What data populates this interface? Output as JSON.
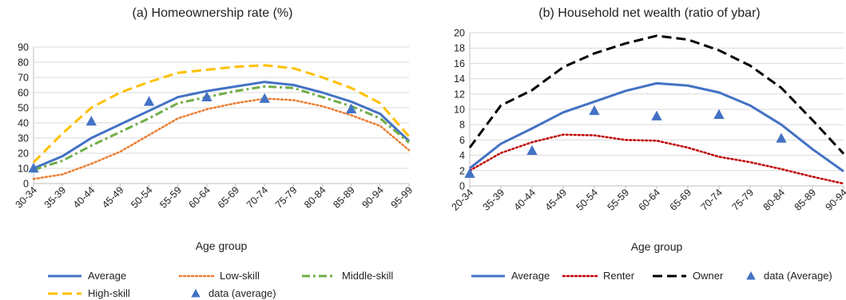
{
  "chart_data": [
    {
      "type": "line",
      "title": "(a) Homeownership rate (%)",
      "xlabel": "Age group",
      "ylabel": "",
      "ylim": [
        0,
        90
      ],
      "yticks": [
        "0",
        "10",
        "20",
        "30",
        "40",
        "50",
        "60",
        "70",
        "80",
        "90"
      ],
      "categories": [
        "30-34",
        "35-39",
        "40-44",
        "45-49",
        "50-54",
        "55-59",
        "60-64",
        "65-69",
        "70-74",
        "75-79",
        "80-84",
        "85-89",
        "90-94",
        "95-99"
      ],
      "grid": "horizontal",
      "legend_placement": "bottom",
      "series": [
        {
          "name": "Average",
          "color": "#4472c4",
          "style": "solid",
          "values": [
            10,
            18,
            30,
            39,
            48,
            57,
            61,
            64,
            67,
            65,
            60,
            54,
            46,
            28
          ]
        },
        {
          "name": "Low-skill",
          "color": "#ed7d31",
          "style": "dotted",
          "values": [
            3,
            6,
            13,
            21,
            32,
            43,
            49,
            53,
            56,
            55,
            51,
            45,
            38,
            22
          ]
        },
        {
          "name": "Middle-skill",
          "color": "#70ad47",
          "style": "dashdot",
          "values": [
            9,
            15,
            25,
            34,
            43,
            53,
            57,
            61,
            64,
            63,
            57,
            51,
            43,
            27
          ]
        },
        {
          "name": "High-skill",
          "color": "#ffc000",
          "style": "dashed",
          "values": [
            14,
            33,
            50,
            60,
            67,
            73,
            75,
            77,
            78,
            76,
            70,
            63,
            53,
            31
          ]
        },
        {
          "name": "data (average)",
          "color": "#4472c4",
          "style": "markers",
          "points": [
            {
              "category": "30-34",
              "value": 10
            },
            {
              "category": "40-44",
              "value": 41
            },
            {
              "category": "50-54",
              "value": 54
            },
            {
              "category": "60-64",
              "value": 57
            },
            {
              "category": "70-74",
              "value": 56
            },
            {
              "category": "85-89",
              "value": 49
            }
          ]
        }
      ],
      "legend_items": [
        {
          "label": "Average",
          "series": 0
        },
        {
          "label": "Low-skill",
          "series": 1
        },
        {
          "label": "Middle-skill",
          "series": 2
        },
        {
          "label": "High-skill",
          "series": 3
        },
        {
          "label": "data (average)",
          "series": 4
        }
      ]
    },
    {
      "type": "line",
      "title": "(b) Household net wealth (ratio of ybar)",
      "xlabel": "Age group",
      "ylabel": "",
      "ylim": [
        0,
        20
      ],
      "yticks": [
        "0",
        "2",
        "4",
        "6",
        "8",
        "10",
        "12",
        "14",
        "16",
        "18",
        "20"
      ],
      "categories": [
        "20-34",
        "35-39",
        "40-44",
        "45-49",
        "50-54",
        "55-59",
        "60-64",
        "65-69",
        "70-74",
        "75-79",
        "80-84",
        "85-89",
        "90-94"
      ],
      "grid": "horizontal",
      "legend_placement": "bottom",
      "series": [
        {
          "name": "Average",
          "color": "#4472c4",
          "style": "solid",
          "values": [
            2.3,
            5.5,
            7.5,
            9.6,
            11.0,
            12.4,
            13.4,
            13.1,
            12.2,
            10.5,
            8.0,
            4.8,
            1.9
          ]
        },
        {
          "name": "Renter",
          "color": "#c00000",
          "style": "dotted",
          "values": [
            2.0,
            4.3,
            5.7,
            6.7,
            6.6,
            6.0,
            5.9,
            5.0,
            3.8,
            3.1,
            2.2,
            1.2,
            0.3
          ]
        },
        {
          "name": "Owner",
          "color": "#000000",
          "style": "dashed",
          "values": [
            5.0,
            10.5,
            12.5,
            15.5,
            17.3,
            18.6,
            19.6,
            19.1,
            17.7,
            15.7,
            12.8,
            8.6,
            4.2
          ]
        },
        {
          "name": "data (Average)",
          "color": "#4472c4",
          "style": "markers",
          "points": [
            {
              "category": "20-34",
              "value": 1.6
            },
            {
              "category": "40-44",
              "value": 4.6
            },
            {
              "category": "50-54",
              "value": 9.8
            },
            {
              "category": "60-64",
              "value": 9.1
            },
            {
              "category": "70-74",
              "value": 9.3
            },
            {
              "category": "80-84",
              "value": 6.2
            }
          ]
        }
      ],
      "legend_items": [
        {
          "label": "Average",
          "series": 0
        },
        {
          "label": "Renter",
          "series": 1
        },
        {
          "label": "Owner",
          "series": 2
        },
        {
          "label": "data (Average)",
          "series": 3
        }
      ]
    }
  ]
}
